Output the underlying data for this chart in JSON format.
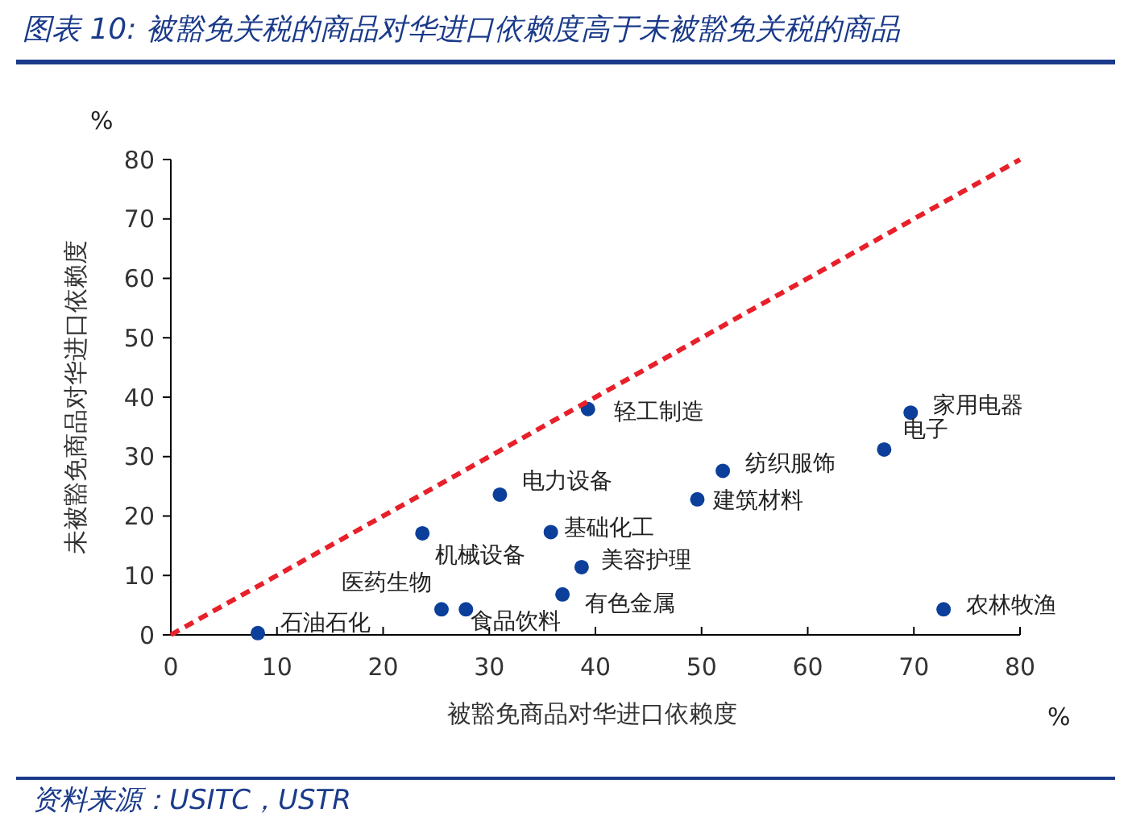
{
  "chart_data": {
    "type": "scatter",
    "title": "图表 10:  被豁免关税的商品对华进口依赖度高于未被豁免关税的商品",
    "xlabel": "被豁免商品对华进口依赖度",
    "ylabel": "未被豁免商品对华进口依赖度",
    "xlim": [
      0,
      80
    ],
    "ylim": [
      0,
      80
    ],
    "xticks": [
      0,
      10,
      20,
      30,
      40,
      50,
      60,
      70,
      80
    ],
    "yticks": [
      0,
      10,
      20,
      30,
      40,
      50,
      60,
      70,
      80
    ],
    "grid": false,
    "series": [
      {
        "color": "#0b3f9a",
        "marker": "circle",
        "x": [
          8.2,
          25.5,
          27.8,
          23.7,
          31,
          35.8,
          38.7,
          36.9,
          39.3,
          52,
          49.6,
          67.2,
          69.7,
          72.8
        ],
        "values": [
          0.3,
          4.3,
          4.3,
          17.1,
          23.6,
          17.3,
          11.4,
          6.8,
          38,
          27.6,
          22.8,
          31.2,
          37.4,
          4.3
        ]
      },
      {
        "type": "line",
        "color": "#e8202a",
        "line_style": "dashed",
        "marker": "none",
        "x": [
          0,
          80
        ],
        "values": [
          0,
          80
        ]
      }
    ],
    "annotations": [
      {
        "text": "石油石化",
        "x": 8.2,
        "y": 0.3
      },
      {
        "text": "医药生物",
        "x": 25.5,
        "y": 4.3
      },
      {
        "text": "食品饮料",
        "x": 27.8,
        "y": 4.3
      },
      {
        "text": "机械设备",
        "x": 23.7,
        "y": 17.1
      },
      {
        "text": "电力设备",
        "x": 31,
        "y": 23.6
      },
      {
        "text": "基础化工",
        "x": 35.8,
        "y": 17.3
      },
      {
        "text": "美容护理",
        "x": 38.7,
        "y": 11.4
      },
      {
        "text": "有色金属",
        "x": 36.9,
        "y": 6.8
      },
      {
        "text": "轻工制造",
        "x": 39.3,
        "y": 38
      },
      {
        "text": "纺织服饰",
        "x": 52,
        "y": 27.6
      },
      {
        "text": "建筑材料",
        "x": 49.6,
        "y": 22.8
      },
      {
        "text": "电子",
        "x": 67.2,
        "y": 31.2
      },
      {
        "text": "家用电器",
        "x": 69.7,
        "y": 37.4
      },
      {
        "text": "农林牧渔",
        "x": 72.8,
        "y": 4.3
      },
      "%",
      "%",
      "资料来源：USITC，USTR"
    ]
  }
}
